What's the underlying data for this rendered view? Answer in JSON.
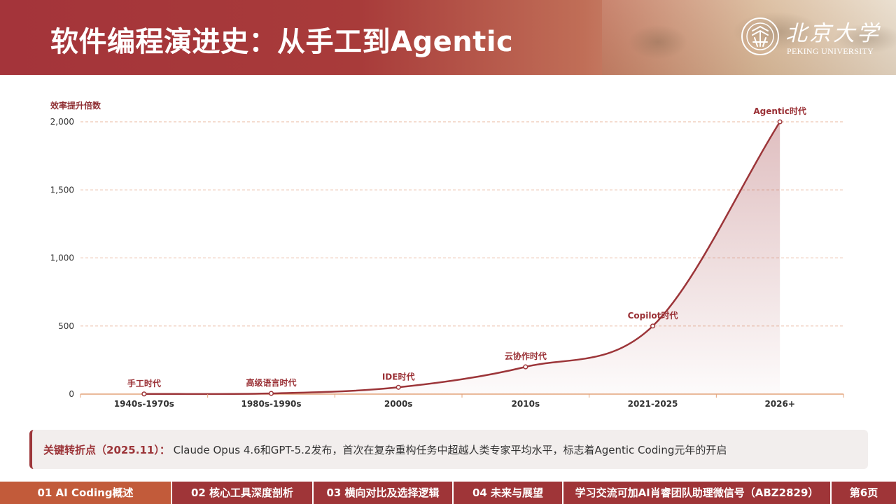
{
  "header": {
    "title": "软件编程演进史：从手工到Agentic",
    "logo_cn": "北京大学",
    "logo_en": "PEKING UNIVERSITY"
  },
  "chart_data": {
    "type": "area",
    "title": "",
    "ylabel": "效率提升倍数",
    "xlabel": "",
    "ylim": [
      0,
      2000
    ],
    "yticks": [
      0,
      500,
      1000,
      1500,
      2000
    ],
    "ytick_labels": [
      "0",
      "500",
      "1,000",
      "1,500",
      "2,000"
    ],
    "categories": [
      "1940s-1970s",
      "1980s-1990s",
      "2000s",
      "2010s",
      "2021-2025",
      "2026+"
    ],
    "values": [
      1,
      5,
      50,
      200,
      500,
      2000
    ],
    "annotations": [
      "手工时代",
      "高级语言时代",
      "IDE时代",
      "云协作时代",
      "Copilot时代",
      "Agentic时代"
    ],
    "grid": true,
    "line_color": "#9c3539",
    "fill_color": "#9c3539",
    "grid_color": "#e9b8a0",
    "axis_color": "#e3a37a"
  },
  "callout": {
    "label": "关键转折点（2025.11）：",
    "text": "Claude Opus 4.6和GPT-5.2发布，首次在复杂重构任务中超越人类专家平均水平，标志着Agentic Coding元年的开启"
  },
  "footer": {
    "items": [
      "01 AI Coding概述",
      "02 核心工具深度剖析",
      "03 横向对比及选择逻辑",
      "04 未来与展望",
      "学习交流可加AI肖睿团队助理微信号（ABZ2829）",
      "第6页"
    ],
    "active_color": "#c25b3a"
  }
}
